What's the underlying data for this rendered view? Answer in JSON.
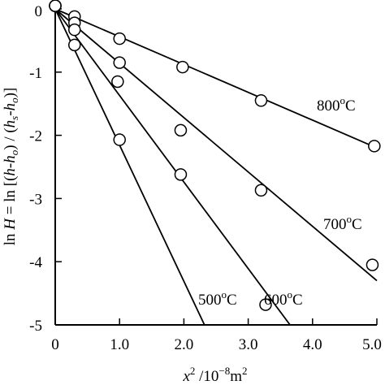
{
  "chart_data": {
    "type": "scatter",
    "title": "",
    "xlabel": {
      "base": "x",
      "exp": "2",
      "sep": " /10",
      "unitexp": "−8",
      "unit": "m",
      "unitexp2": "2"
    },
    "ylabel": {
      "p1": "ln ",
      "H": "H",
      "p2": " = ln [(",
      "h1": "h",
      "p3": "-",
      "ho1": "h",
      "o1": "o",
      "p4": ") / (",
      "hs": "h",
      "s": "s",
      "p5": "-",
      "ho2": "h",
      "o2": "o",
      "p6": ")]"
    },
    "xlim": [
      0,
      5.0
    ],
    "ylim": [
      -5,
      0.2
    ],
    "xticks": [
      0,
      1.0,
      2.0,
      3.0,
      4.0,
      5.0
    ],
    "xtick_labels": [
      "0",
      "1.0",
      "2.0",
      "3.0",
      "4.0",
      "5.0"
    ],
    "yticks": [
      0,
      -1,
      -2,
      -3,
      -4,
      -5
    ],
    "ytick_labels": [
      "0",
      "-1",
      "-2",
      "-3",
      "-4",
      "-5"
    ],
    "grid": false,
    "series": [
      {
        "name": {
          "num": "800",
          "deg": "o",
          "unit": "C"
        },
        "x": [
          0,
          0.3,
          1.0,
          1.98,
          3.2,
          4.96
        ],
        "y": [
          0.05,
          -0.12,
          -0.47,
          -0.92,
          -1.45,
          -2.17
        ],
        "fit": {
          "x0": 0,
          "y0": 0,
          "x1": 5.0,
          "y1": -2.2
        }
      },
      {
        "name": {
          "num": "700",
          "deg": "o",
          "unit": "C"
        },
        "x": [
          0,
          0.3,
          1.0,
          1.95,
          3.2,
          4.93
        ],
        "y": [
          0.05,
          -0.22,
          -0.85,
          -1.92,
          -2.87,
          -4.05
        ],
        "fit": {
          "x0": 0,
          "y0": 0,
          "x1": 5.0,
          "y1": -4.3
        }
      },
      {
        "name": {
          "num": "600",
          "deg": "o",
          "unit": "C"
        },
        "x": [
          0,
          0.3,
          0.97,
          1.95,
          3.27
        ],
        "y": [
          0.05,
          -0.33,
          -1.15,
          -2.62,
          -4.68
        ],
        "fit": {
          "x0": 0,
          "y0": 0,
          "x1": 3.65,
          "y1": -5.0
        }
      },
      {
        "name": {
          "num": "500",
          "deg": "o",
          "unit": "C"
        },
        "x": [
          0,
          0.3,
          1.0
        ],
        "y": [
          0.05,
          -0.57,
          -2.07
        ],
        "fit": {
          "x0": 0,
          "y0": 0,
          "x1": 2.32,
          "y1": -5.0
        }
      }
    ]
  }
}
